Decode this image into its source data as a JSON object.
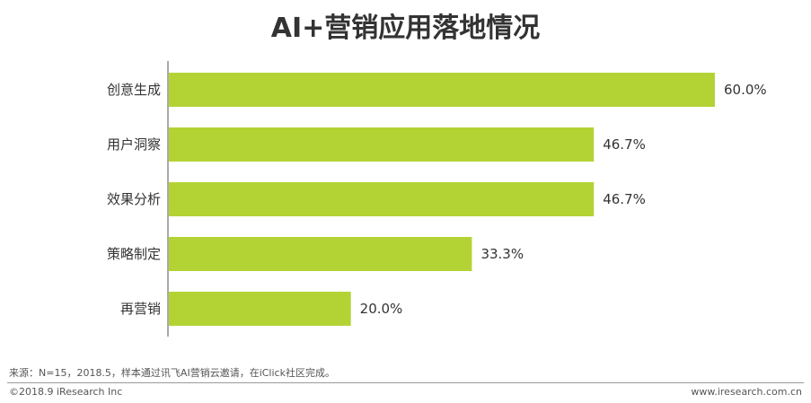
{
  "chart_data": {
    "type": "bar",
    "orientation": "horizontal",
    "title": "AI+营销应用落地情况",
    "categories": [
      "创意生成",
      "用户洞察",
      "效果分析",
      "策略制定",
      "再营销"
    ],
    "values": [
      60.0,
      46.7,
      46.7,
      33.3,
      20.0
    ],
    "value_labels": [
      "60.0%",
      "46.7%",
      "46.7%",
      "33.3%",
      "20.0%"
    ],
    "unit": "%",
    "xlim": [
      0,
      60
    ],
    "bar_color": "#b3d335",
    "axis_color": "#555555",
    "grid": false
  },
  "footer": {
    "source": "来源：N=15，2018.5，样本通过讯飞AI营销云邀请，在iClick社区完成。",
    "copyright": "©2018.9 iResearch Inc",
    "website": "www.iresearch.com.cn"
  }
}
